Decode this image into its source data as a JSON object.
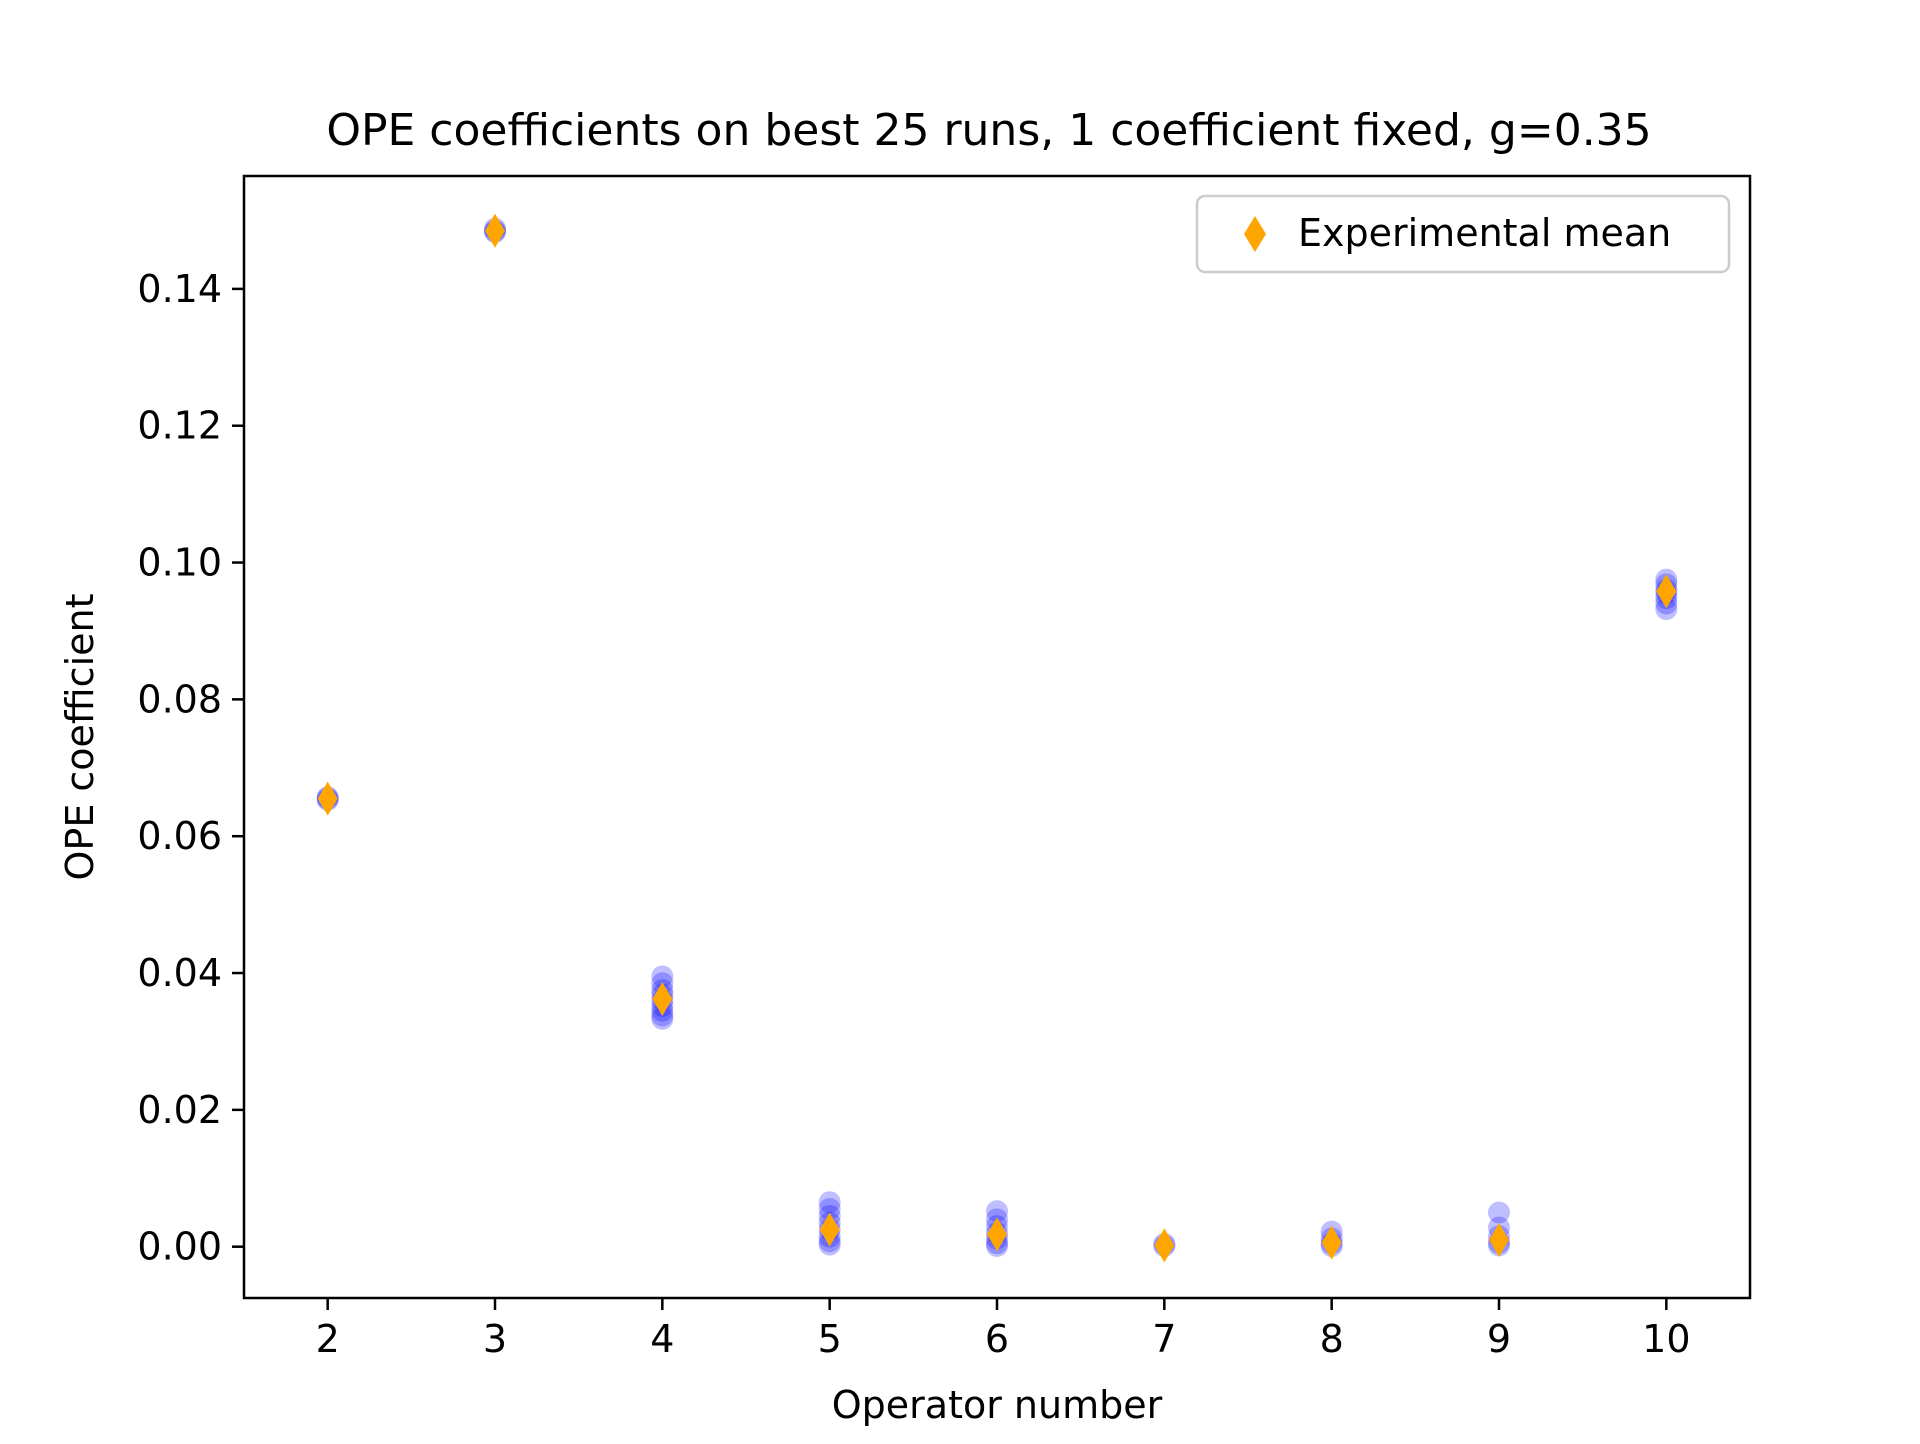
{
  "chart_data": {
    "type": "scatter",
    "title": "OPE coefficients on best 25 runs, 1 coefficient fixed, g=0.35",
    "xlabel": "Operator number",
    "ylabel": "OPE coefficient",
    "xlim": [
      1.5,
      10.5
    ],
    "ylim": [
      -0.0075,
      0.1565
    ],
    "x_ticks": [
      2,
      3,
      4,
      5,
      6,
      7,
      8,
      9,
      10
    ],
    "x_tick_labels": [
      "2",
      "3",
      "4",
      "5",
      "6",
      "7",
      "8",
      "9",
      "10"
    ],
    "y_ticks": [
      0.0,
      0.02,
      0.04,
      0.06,
      0.08,
      0.1,
      0.12,
      0.14
    ],
    "y_tick_labels": [
      "0.00",
      "0.02",
      "0.04",
      "0.06",
      "0.08",
      "0.10",
      "0.12",
      "0.14"
    ],
    "grid": false,
    "legend": {
      "position": "top-right",
      "entries": [
        "Experimental mean"
      ]
    },
    "colors": {
      "runs": "#0000ff",
      "mean": "#ffa500"
    },
    "series": [
      {
        "marker": "circle",
        "color": "#0000ff",
        "points": [
          [
            2,
            0.0655
          ],
          [
            2,
            0.0653
          ],
          [
            2,
            0.0657
          ],
          [
            3,
            0.1485
          ],
          [
            3,
            0.1483
          ],
          [
            3,
            0.1488
          ],
          [
            4,
            0.0395
          ],
          [
            4,
            0.0385
          ],
          [
            4,
            0.0375
          ],
          [
            4,
            0.0368
          ],
          [
            4,
            0.036
          ],
          [
            4,
            0.0352
          ],
          [
            4,
            0.0345
          ],
          [
            4,
            0.0338
          ],
          [
            4,
            0.0333
          ],
          [
            5,
            0.0065
          ],
          [
            5,
            0.0055
          ],
          [
            5,
            0.0045
          ],
          [
            5,
            0.0035
          ],
          [
            5,
            0.0025
          ],
          [
            5,
            0.0015
          ],
          [
            5,
            0.0008
          ],
          [
            5,
            0.0003
          ],
          [
            6,
            0.0052
          ],
          [
            6,
            0.004
          ],
          [
            6,
            0.003
          ],
          [
            6,
            0.002
          ],
          [
            6,
            0.0012
          ],
          [
            6,
            0.0005
          ],
          [
            6,
            0.0001
          ],
          [
            7,
            0.0004
          ],
          [
            7,
            0.0001
          ],
          [
            8,
            0.0022
          ],
          [
            8,
            0.0012
          ],
          [
            8,
            0.0005
          ],
          [
            8,
            0.0001
          ],
          [
            9,
            0.005
          ],
          [
            9,
            0.0028
          ],
          [
            9,
            0.0015
          ],
          [
            9,
            0.0006
          ],
          [
            9,
            0.0002
          ],
          [
            10,
            0.0975
          ],
          [
            10,
            0.0968
          ],
          [
            10,
            0.096
          ],
          [
            10,
            0.0955
          ],
          [
            10,
            0.0948
          ],
          [
            10,
            0.094
          ],
          [
            10,
            0.0932
          ]
        ]
      },
      {
        "name": "Experimental mean",
        "marker": "diamond",
        "color": "#ffa500",
        "x": [
          2,
          3,
          4,
          5,
          6,
          7,
          8,
          9,
          10
        ],
        "y": [
          0.0655,
          0.1485,
          0.0362,
          0.0025,
          0.0018,
          0.0002,
          0.0006,
          0.001,
          0.0958
        ]
      }
    ]
  }
}
